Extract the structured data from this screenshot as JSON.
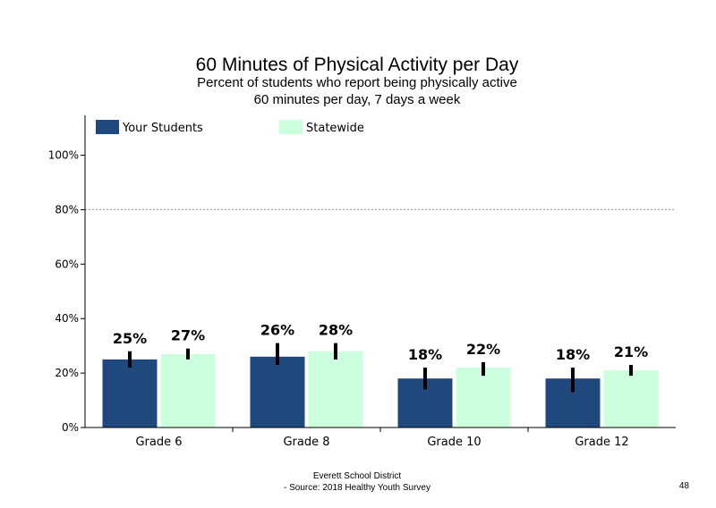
{
  "colors": {
    "your_students": "#1f497d",
    "statewide": "#ccffdd",
    "gridline": "#999999",
    "axis": "#000000"
  },
  "chart_data": {
    "type": "bar",
    "title": "60 Minutes of Physical Activity per Day",
    "subtitle_lines": [
      "Percent of students who report being physically active",
      "60 minutes per day, 7 days a week"
    ],
    "categories": [
      "Grade 6",
      "Grade 8",
      "Grade 10",
      "Grade 12"
    ],
    "series": [
      {
        "name": "Your Students",
        "color": "#1f497d",
        "values": [
          25,
          26,
          18,
          18
        ],
        "labels": [
          "25%",
          "26%",
          "18%",
          "18%"
        ],
        "error_low": [
          22,
          23,
          14,
          13
        ],
        "error_high": [
          28,
          31,
          22,
          22
        ]
      },
      {
        "name": "Statewide",
        "color": "#ccffdd",
        "values": [
          27,
          28,
          22,
          21
        ],
        "labels": [
          "27%",
          "28%",
          "22%",
          "21%"
        ],
        "error_low": [
          25,
          25,
          19,
          19
        ],
        "error_high": [
          29,
          31,
          24,
          23
        ]
      }
    ],
    "ylim": [
      0,
      112
    ],
    "yticks": [
      0,
      20,
      40,
      60,
      80,
      100
    ],
    "ytick_labels": [
      "0%",
      "20%",
      "40%",
      "60%",
      "80%",
      "100%"
    ],
    "gridlines_at": [
      80
    ],
    "grid": "dotted horizontal at 80%",
    "legend_position": "top-left"
  },
  "footer": {
    "line1": "Everett School District",
    "line2": "- Source: 2018 Healthy Youth Survey"
  },
  "page_number": "48"
}
